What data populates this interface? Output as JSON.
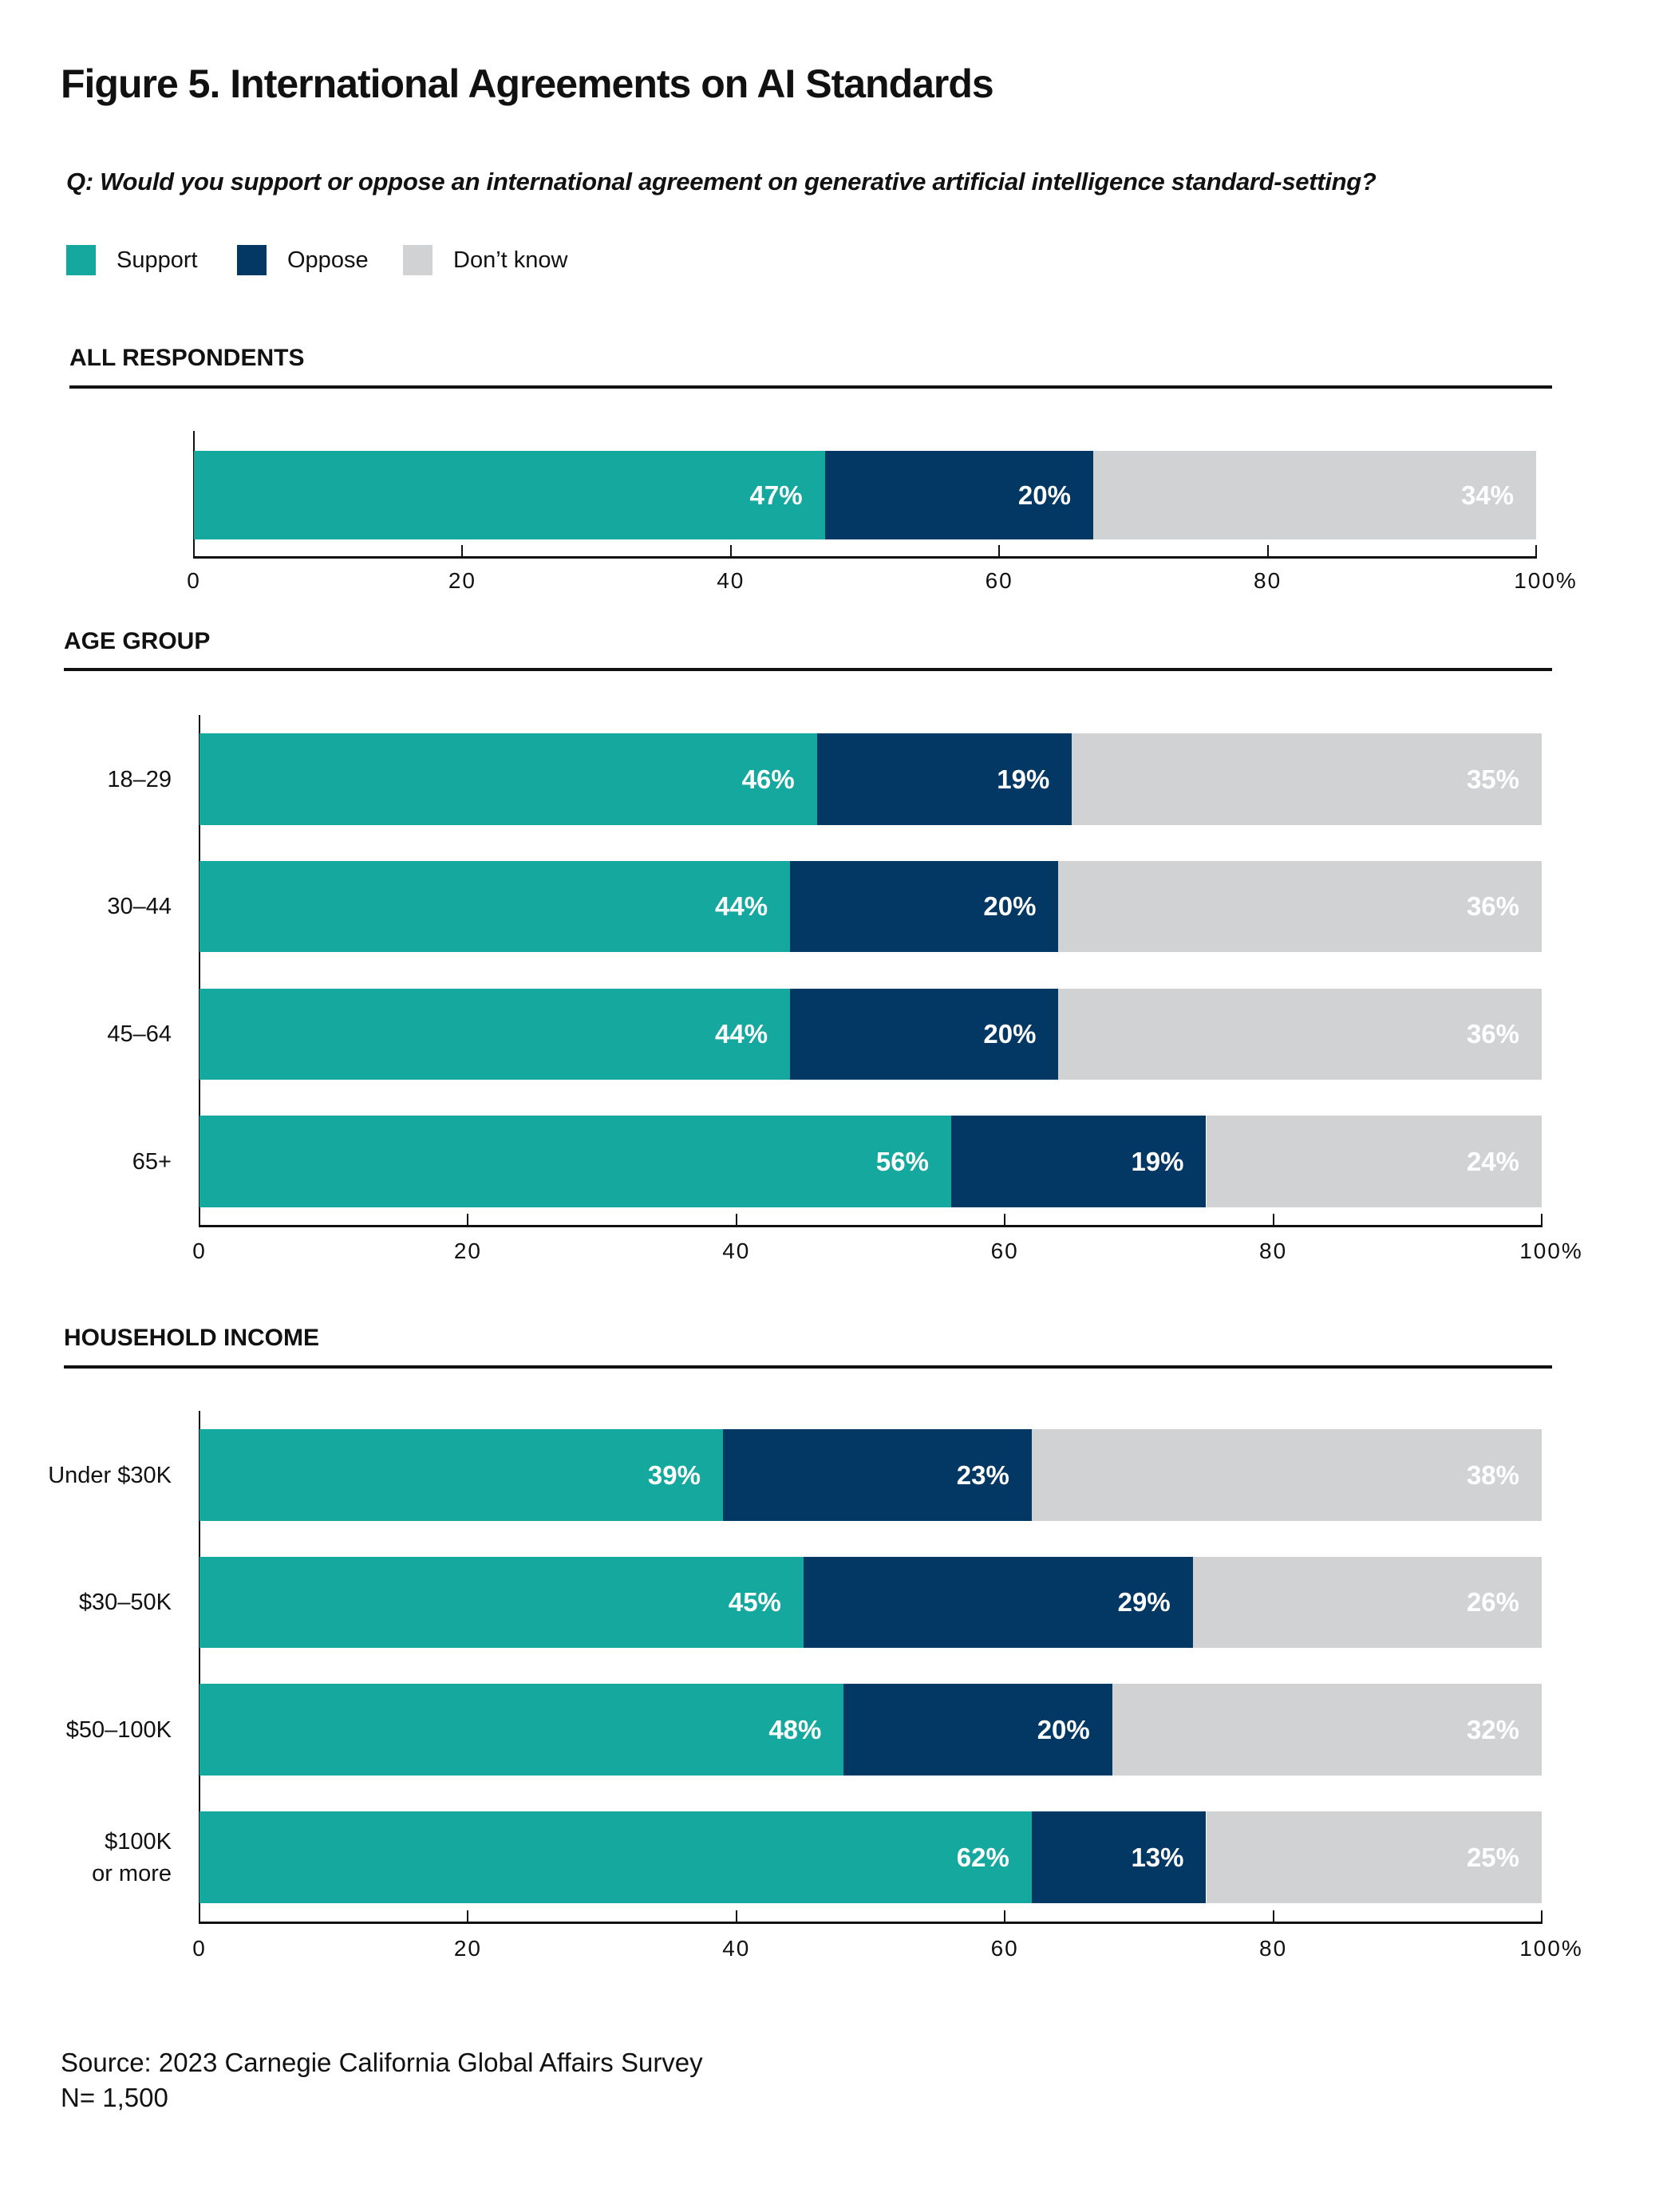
{
  "title": "Figure 5. International Agreements on AI Standards",
  "question": "Q: Would you support or oppose an international agreement on generative artificial intelligence standard-setting?",
  "legend": [
    {
      "label": "Support",
      "color": "#14A89E"
    },
    {
      "label": "Oppose",
      "color": "#033764"
    },
    {
      "label": "Don’t know",
      "color": "#D1D2D4"
    }
  ],
  "source": "Source: 2023 Carnegie California Global Affairs Survey",
  "n_note": "N= 1,500",
  "chart_data": [
    {
      "type": "bar",
      "orientation": "horizontal",
      "stacked": true,
      "title": "ALL RESPONDENTS",
      "categories": [
        ""
      ],
      "series": [
        {
          "name": "Support",
          "values": [
            47
          ]
        },
        {
          "name": "Oppose",
          "values": [
            20
          ]
        },
        {
          "name": "Don’t know",
          "values": [
            34
          ]
        }
      ],
      "data_labels": [
        [
          "47%",
          "20%",
          "34%"
        ]
      ],
      "xlim": [
        0,
        100
      ],
      "x_ticks": [
        "0",
        "20",
        "40",
        "60",
        "80",
        "100%"
      ],
      "grid": false
    },
    {
      "type": "bar",
      "orientation": "horizontal",
      "stacked": true,
      "title": "AGE GROUP",
      "categories": [
        "18–29",
        "30–44",
        "45–64",
        "65+"
      ],
      "series": [
        {
          "name": "Support",
          "values": [
            46,
            44,
            44,
            56
          ]
        },
        {
          "name": "Oppose",
          "values": [
            19,
            20,
            20,
            19
          ]
        },
        {
          "name": "Don’t know",
          "values": [
            35,
            36,
            36,
            24
          ]
        }
      ],
      "data_labels": [
        [
          "46%",
          "19%",
          "35%"
        ],
        [
          "44%",
          "20%",
          "36%"
        ],
        [
          "44%",
          "20%",
          "36%"
        ],
        [
          "56%",
          "19%",
          "24%"
        ]
      ],
      "xlim": [
        0,
        100
      ],
      "x_ticks": [
        "0",
        "20",
        "40",
        "60",
        "80",
        "100%"
      ],
      "grid": false
    },
    {
      "type": "bar",
      "orientation": "horizontal",
      "stacked": true,
      "title": "HOUSEHOLD INCOME",
      "categories": [
        "Under $30K",
        "$30–50K",
        "$50–100K",
        "$100K\nor more"
      ],
      "series": [
        {
          "name": "Support",
          "values": [
            39,
            45,
            48,
            62
          ]
        },
        {
          "name": "Oppose",
          "values": [
            23,
            29,
            20,
            13
          ]
        },
        {
          "name": "Don’t know",
          "values": [
            38,
            26,
            32,
            25
          ]
        }
      ],
      "data_labels": [
        [
          "39%",
          "23%",
          "38%"
        ],
        [
          "45%",
          "29%",
          "26%"
        ],
        [
          "48%",
          "20%",
          "32%"
        ],
        [
          "62%",
          "13%",
          "25%"
        ]
      ],
      "xlim": [
        0,
        100
      ],
      "x_ticks": [
        "0",
        "20",
        "40",
        "60",
        "80",
        "100%"
      ],
      "grid": false
    }
  ]
}
